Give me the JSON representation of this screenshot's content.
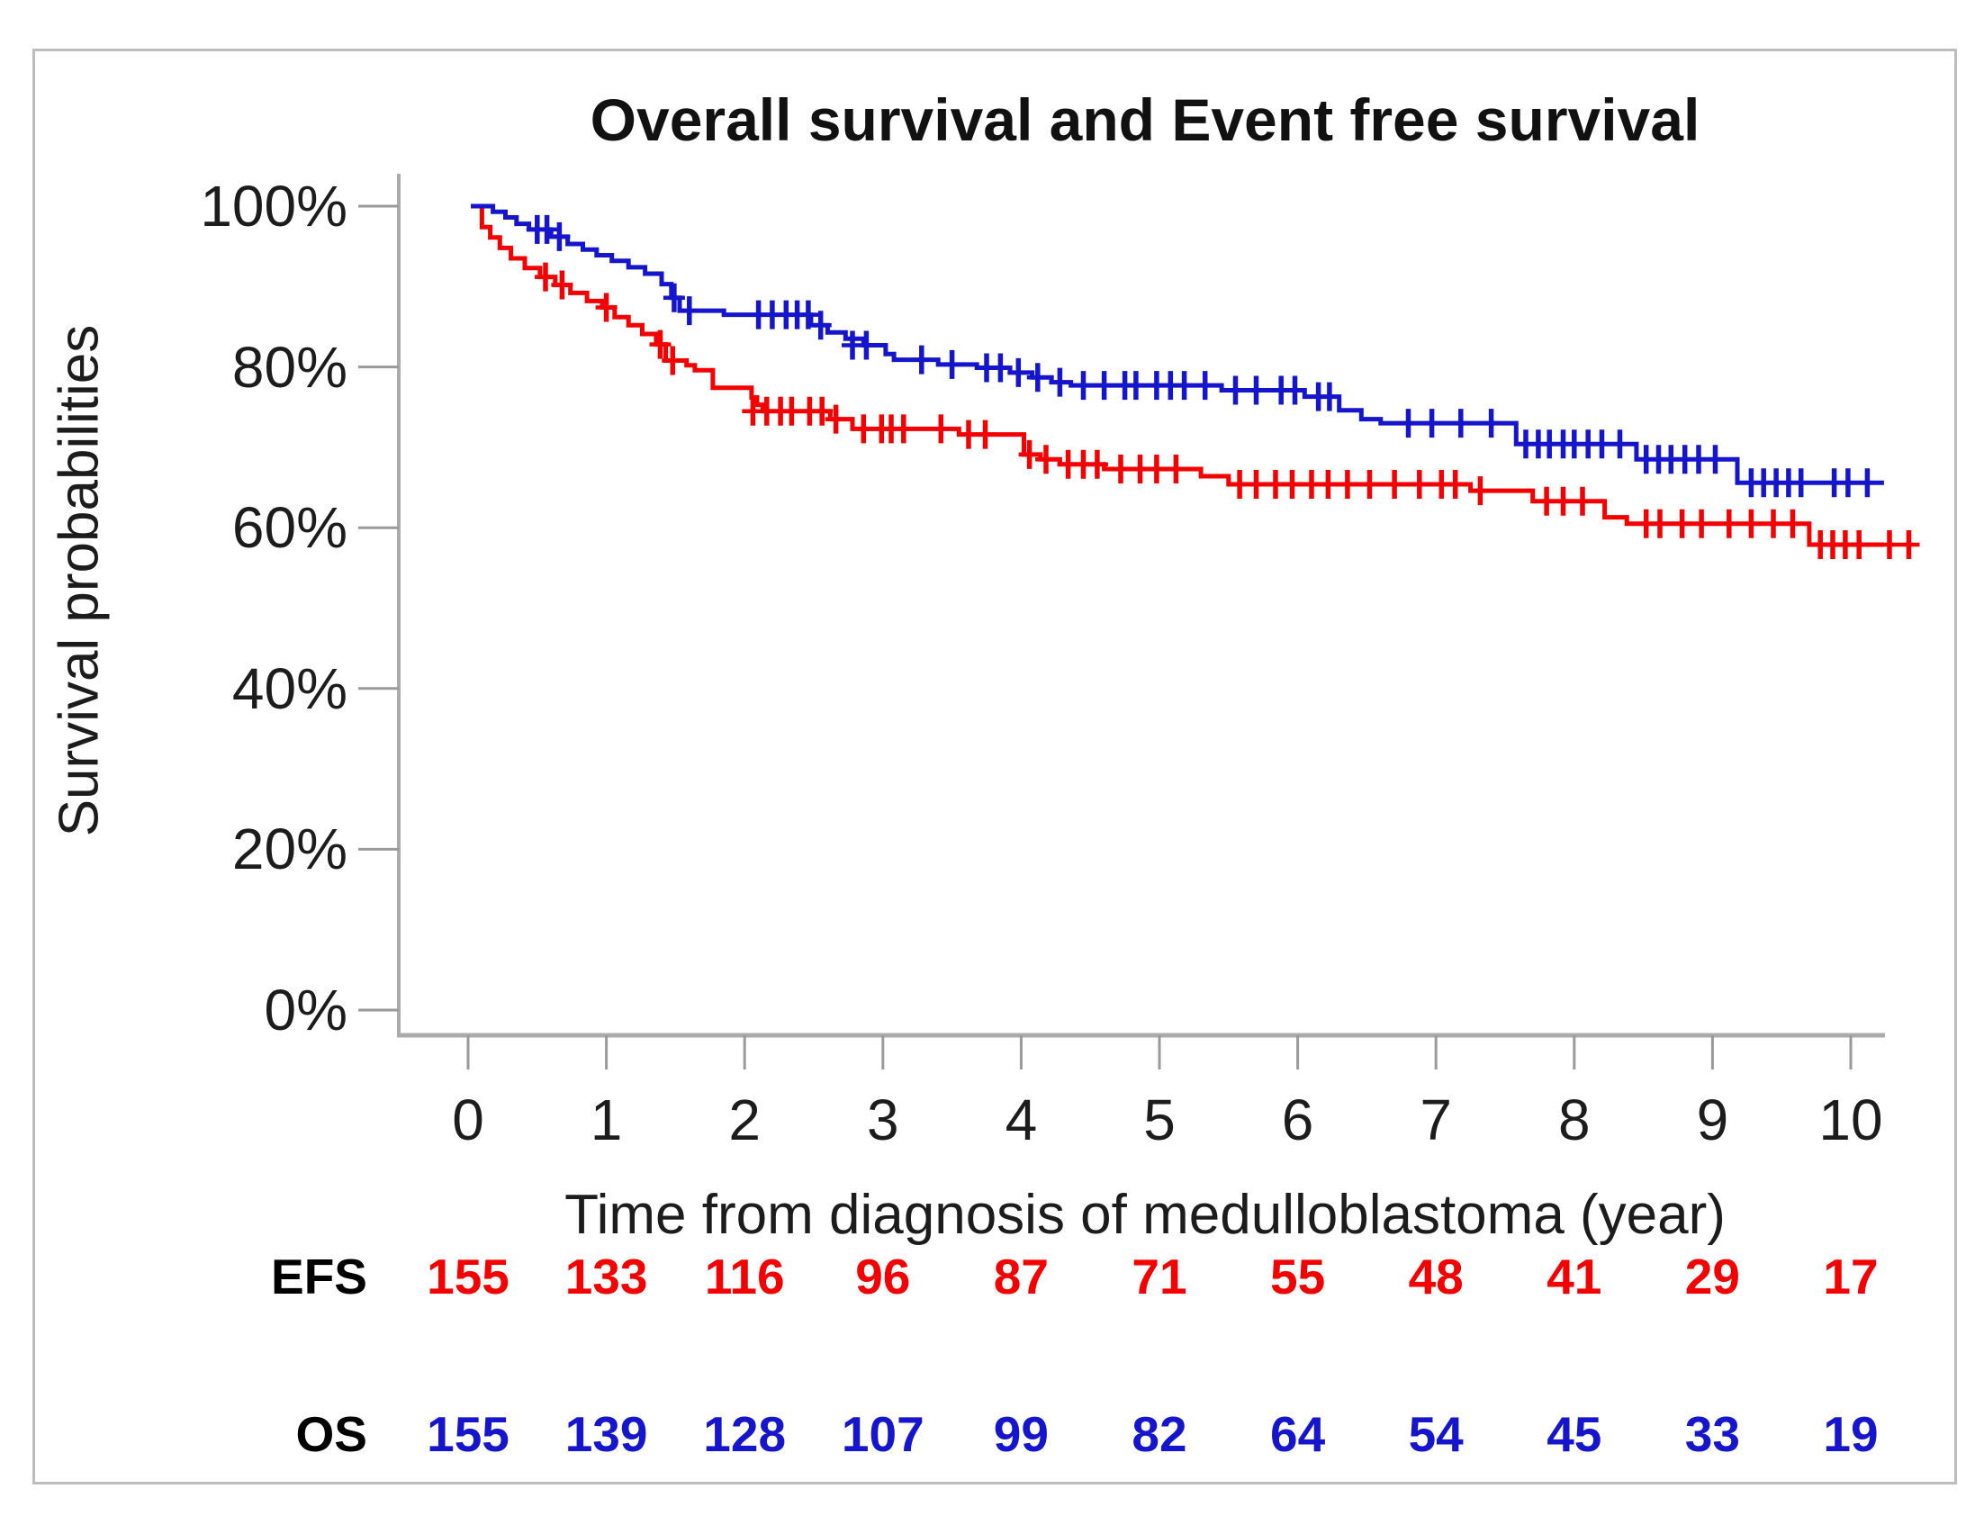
{
  "figure": {
    "border_color": "#bdbdbd",
    "axis_color": "#ababab",
    "tick_color": "#9a9a9a",
    "background": "#ffffff"
  },
  "chart_data": {
    "type": "line",
    "subtype": "kaplan-meier-step",
    "title": "Overall survival and Event free survival",
    "xlabel": "Time from diagnosis of medulloblastoma (year)",
    "ylabel": "Survival probabilities",
    "xlim": [
      0,
      10.5
    ],
    "ylim": [
      0,
      100
    ],
    "grid": false,
    "legend_position": "none",
    "x_ticks": [
      {
        "v": 0,
        "label": "0"
      },
      {
        "v": 1,
        "label": "1"
      },
      {
        "v": 2,
        "label": "2"
      },
      {
        "v": 3,
        "label": "3"
      },
      {
        "v": 4,
        "label": "4"
      },
      {
        "v": 5,
        "label": "5"
      },
      {
        "v": 6,
        "label": "6"
      },
      {
        "v": 7,
        "label": "7"
      },
      {
        "v": 8,
        "label": "8"
      },
      {
        "v": 9,
        "label": "9"
      },
      {
        "v": 10,
        "label": "10"
      }
    ],
    "y_ticks": [
      {
        "v": 100,
        "label": "100%"
      },
      {
        "v": 80,
        "label": "80%"
      },
      {
        "v": 60,
        "label": "60%"
      },
      {
        "v": 40,
        "label": "40%"
      },
      {
        "v": 20,
        "label": "20%"
      },
      {
        "v": 0,
        "label": "0%"
      }
    ],
    "series": [
      {
        "name": "EFS",
        "color": "#f40000",
        "steps": [
          [
            0.02,
            100
          ],
          [
            0.1,
            97.4
          ],
          [
            0.16,
            96.1
          ],
          [
            0.23,
            94.8
          ],
          [
            0.31,
            93.5
          ],
          [
            0.41,
            92.3
          ],
          [
            0.52,
            91.2
          ],
          [
            0.63,
            90.2
          ],
          [
            0.74,
            89.2
          ],
          [
            0.86,
            88.2
          ],
          [
            0.97,
            87.4
          ],
          [
            1.06,
            86.2
          ],
          [
            1.16,
            85.2
          ],
          [
            1.26,
            84.1
          ],
          [
            1.36,
            82.8
          ],
          [
            1.43,
            80.8
          ],
          [
            1.58,
            80.2
          ],
          [
            1.64,
            79.6
          ],
          [
            1.77,
            77.4
          ],
          [
            2.05,
            76.2
          ],
          [
            2.09,
            75.3
          ],
          [
            2.13,
            74.5
          ],
          [
            2.62,
            73.5
          ],
          [
            2.78,
            72.3
          ],
          [
            3.55,
            71.6
          ],
          [
            4.02,
            69.1
          ],
          [
            4.14,
            68.5
          ],
          [
            4.28,
            67.9
          ],
          [
            4.6,
            67.3
          ],
          [
            5.3,
            66.4
          ],
          [
            5.5,
            65.4
          ],
          [
            7.25,
            64.6
          ],
          [
            7.7,
            63.3
          ],
          [
            8.22,
            61.3
          ],
          [
            8.38,
            60.5
          ],
          [
            9.7,
            57.9
          ],
          [
            10.24,
            57.9
          ]
        ],
        "censors": [
          [
            0.56,
            91.2
          ],
          [
            0.68,
            90.2
          ],
          [
            1.0,
            87.4
          ],
          [
            1.39,
            82.8
          ],
          [
            1.48,
            80.8
          ],
          [
            2.06,
            74.5
          ],
          [
            2.16,
            74.5
          ],
          [
            2.26,
            74.5
          ],
          [
            2.34,
            74.5
          ],
          [
            2.47,
            74.5
          ],
          [
            2.56,
            74.5
          ],
          [
            2.66,
            73.5
          ],
          [
            2.86,
            72.3
          ],
          [
            2.99,
            72.3
          ],
          [
            3.06,
            72.3
          ],
          [
            3.15,
            72.3
          ],
          [
            3.42,
            72.3
          ],
          [
            3.62,
            71.6
          ],
          [
            3.74,
            71.6
          ],
          [
            4.06,
            69.1
          ],
          [
            4.18,
            68.5
          ],
          [
            4.34,
            67.9
          ],
          [
            4.45,
            67.9
          ],
          [
            4.55,
            67.9
          ],
          [
            4.72,
            67.3
          ],
          [
            4.86,
            67.3
          ],
          [
            4.98,
            67.3
          ],
          [
            5.12,
            67.3
          ],
          [
            5.58,
            65.4
          ],
          [
            5.7,
            65.4
          ],
          [
            5.84,
            65.4
          ],
          [
            5.96,
            65.4
          ],
          [
            6.1,
            65.4
          ],
          [
            6.22,
            65.4
          ],
          [
            6.36,
            65.4
          ],
          [
            6.52,
            65.4
          ],
          [
            6.7,
            65.4
          ],
          [
            6.88,
            65.4
          ],
          [
            7.04,
            65.4
          ],
          [
            7.14,
            65.4
          ],
          [
            7.32,
            64.6
          ],
          [
            7.8,
            63.3
          ],
          [
            7.92,
            63.3
          ],
          [
            8.06,
            63.3
          ],
          [
            8.52,
            60.5
          ],
          [
            8.62,
            60.5
          ],
          [
            8.78,
            60.5
          ],
          [
            8.92,
            60.5
          ],
          [
            9.12,
            60.5
          ],
          [
            9.28,
            60.5
          ],
          [
            9.44,
            60.5
          ],
          [
            9.58,
            60.5
          ],
          [
            9.78,
            57.9
          ],
          [
            9.87,
            57.9
          ],
          [
            9.96,
            57.9
          ],
          [
            10.06,
            57.9
          ],
          [
            10.28,
            57.9
          ],
          [
            10.42,
            57.9
          ]
        ]
      },
      {
        "name": "OS",
        "color": "#1515cd",
        "steps": [
          [
            0.02,
            100
          ],
          [
            0.18,
            99.3
          ],
          [
            0.27,
            98.6
          ],
          [
            0.35,
            97.8
          ],
          [
            0.44,
            97.1
          ],
          [
            0.6,
            96.2
          ],
          [
            0.72,
            95.3
          ],
          [
            0.83,
            94.6
          ],
          [
            0.93,
            93.9
          ],
          [
            1.04,
            93.2
          ],
          [
            1.16,
            92.4
          ],
          [
            1.28,
            91.6
          ],
          [
            1.4,
            90.3
          ],
          [
            1.47,
            88.6
          ],
          [
            1.53,
            87.0
          ],
          [
            1.85,
            86.5
          ],
          [
            2.48,
            85.2
          ],
          [
            2.6,
            84.3
          ],
          [
            2.73,
            83.5
          ],
          [
            2.86,
            82.7
          ],
          [
            3.02,
            81.6
          ],
          [
            3.08,
            80.9
          ],
          [
            3.4,
            80.3
          ],
          [
            3.68,
            79.9
          ],
          [
            3.92,
            79.3
          ],
          [
            4.08,
            78.7
          ],
          [
            4.22,
            78.1
          ],
          [
            4.36,
            77.7
          ],
          [
            5.45,
            77.1
          ],
          [
            6.05,
            76.3
          ],
          [
            6.3,
            74.6
          ],
          [
            6.46,
            73.5
          ],
          [
            6.6,
            73.0
          ],
          [
            7.58,
            70.4
          ],
          [
            8.45,
            68.5
          ],
          [
            9.18,
            65.6
          ],
          [
            10.24,
            65.6
          ]
        ],
        "censors": [
          [
            0.5,
            97.1
          ],
          [
            0.57,
            97.1
          ],
          [
            0.66,
            96.2
          ],
          [
            1.49,
            88.6
          ],
          [
            1.6,
            87.0
          ],
          [
            2.1,
            86.5
          ],
          [
            2.2,
            86.5
          ],
          [
            2.3,
            86.5
          ],
          [
            2.38,
            86.5
          ],
          [
            2.46,
            86.5
          ],
          [
            2.55,
            85.2
          ],
          [
            2.78,
            82.7
          ],
          [
            2.88,
            82.7
          ],
          [
            3.28,
            80.9
          ],
          [
            3.5,
            80.3
          ],
          [
            3.75,
            79.9
          ],
          [
            3.85,
            79.9
          ],
          [
            3.98,
            79.3
          ],
          [
            4.12,
            78.7
          ],
          [
            4.28,
            78.1
          ],
          [
            4.45,
            77.7
          ],
          [
            4.6,
            77.7
          ],
          [
            4.75,
            77.7
          ],
          [
            4.83,
            77.7
          ],
          [
            4.98,
            77.7
          ],
          [
            5.08,
            77.7
          ],
          [
            5.18,
            77.7
          ],
          [
            5.33,
            77.7
          ],
          [
            5.55,
            77.1
          ],
          [
            5.7,
            77.1
          ],
          [
            5.88,
            77.1
          ],
          [
            5.98,
            77.1
          ],
          [
            6.15,
            76.3
          ],
          [
            6.23,
            76.3
          ],
          [
            6.8,
            73.0
          ],
          [
            6.97,
            73.0
          ],
          [
            7.18,
            73.0
          ],
          [
            7.4,
            73.0
          ],
          [
            7.65,
            70.4
          ],
          [
            7.74,
            70.4
          ],
          [
            7.82,
            70.4
          ],
          [
            7.92,
            70.4
          ],
          [
            8.0,
            70.4
          ],
          [
            8.1,
            70.4
          ],
          [
            8.2,
            70.4
          ],
          [
            8.33,
            70.4
          ],
          [
            8.52,
            68.5
          ],
          [
            8.61,
            68.5
          ],
          [
            8.7,
            68.5
          ],
          [
            8.8,
            68.5
          ],
          [
            8.9,
            68.5
          ],
          [
            9.02,
            68.5
          ],
          [
            9.28,
            65.6
          ],
          [
            9.37,
            65.6
          ],
          [
            9.46,
            65.6
          ],
          [
            9.55,
            65.6
          ],
          [
            9.64,
            65.6
          ],
          [
            9.88,
            65.6
          ],
          [
            9.98,
            65.6
          ],
          [
            10.12,
            65.6
          ]
        ]
      }
    ],
    "risk_table": {
      "time_points": [
        0,
        1,
        2,
        3,
        4,
        5,
        6,
        7,
        8,
        9,
        10
      ],
      "rows": [
        {
          "label": "EFS",
          "color": "#f40000",
          "values": [
            "155",
            "133",
            "116",
            "96",
            "87",
            "71",
            "55",
            "48",
            "41",
            "29",
            "17"
          ]
        },
        {
          "label": "OS",
          "color": "#1515cd",
          "values": [
            "155",
            "139",
            "128",
            "107",
            "99",
            "82",
            "64",
            "54",
            "45",
            "33",
            "19"
          ]
        }
      ]
    }
  }
}
